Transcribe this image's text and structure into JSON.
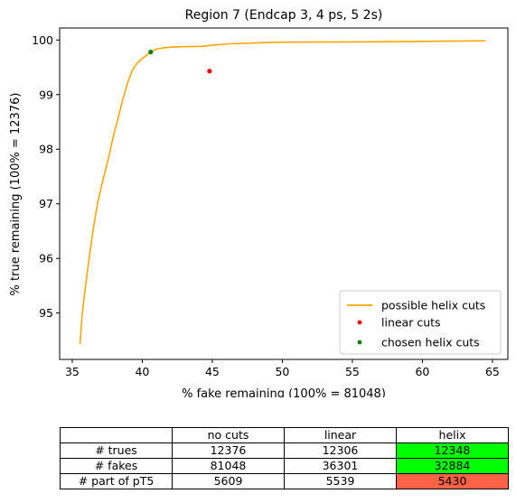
{
  "chart_data": {
    "type": "line",
    "title": "Region 7 (Endcap 3, 4 ps, 5 2s)",
    "xlabel": "% fake remaining (100% = 81048)",
    "ylabel": "% true remaining (100% = 12376)",
    "xlim": [
      34.1,
      66.1
    ],
    "ylim": [
      94.15,
      100.22
    ],
    "xticks": [
      35,
      40,
      45,
      50,
      55,
      60,
      65
    ],
    "yticks": [
      95,
      96,
      97,
      98,
      99,
      100
    ],
    "grid": false,
    "legend_position": "lower-right",
    "series": [
      {
        "name": "possible helix cuts",
        "kind": "line",
        "color": "#ffa500",
        "x": [
          35.55,
          35.7,
          35.9,
          36.15,
          36.45,
          36.8,
          37.2,
          37.6,
          37.9,
          38.3,
          38.65,
          39.0,
          39.3,
          39.55,
          39.8,
          40.1,
          40.4,
          40.6,
          40.8,
          41.1,
          41.6,
          42.3,
          43.2,
          44.3,
          45.2,
          46.3,
          48.5,
          50.0,
          55.0,
          60.0,
          64.5
        ],
        "y": [
          94.43,
          94.95,
          95.4,
          95.9,
          96.45,
          97.0,
          97.45,
          97.85,
          98.2,
          98.6,
          98.95,
          99.25,
          99.45,
          99.55,
          99.62,
          99.68,
          99.74,
          99.78,
          99.81,
          99.84,
          99.86,
          99.875,
          99.88,
          99.885,
          99.91,
          99.93,
          99.95,
          99.96,
          99.965,
          99.975,
          99.985
        ]
      },
      {
        "name": "linear cuts",
        "kind": "scatter",
        "color": "#ff0000",
        "x": [
          44.8
        ],
        "y": [
          99.43
        ]
      },
      {
        "name": "chosen helix cuts",
        "kind": "scatter",
        "color": "#008000",
        "x": [
          40.6
        ],
        "y": [
          99.78
        ]
      }
    ],
    "table": {
      "columns": [
        "",
        "no cuts",
        "linear",
        "helix"
      ],
      "rows": [
        {
          "label": "# trues",
          "values": [
            "12376",
            "12306",
            "12348"
          ],
          "helix_color": "#00ff00"
        },
        {
          "label": "# fakes",
          "values": [
            "81048",
            "36301",
            "32884"
          ],
          "helix_color": "#00ff00"
        },
        {
          "label": "# part of pT5",
          "values": [
            "5609",
            "5539",
            "5430"
          ],
          "helix_color": "#ff6347"
        }
      ]
    }
  }
}
